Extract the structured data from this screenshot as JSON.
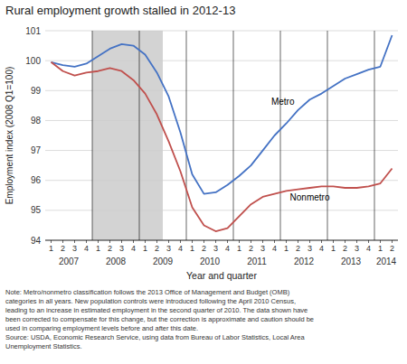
{
  "chart_data": {
    "type": "line",
    "title": "Rural employment growth stalled in 2012-13",
    "ylabel": "Employment index (2008 Q1=100)",
    "xlabel": "Year and quarter",
    "note": "Note: Metro/nonmetro classification follows the 2013 Office of Management and Budget (OMB)\ncategories in all years. New population controls were introduced following the April 2010 Census,\nleading to an increase in estimated employment in the second quarter of 2010. The data shown have\nbeen corrected to compensate for this change, but the correction is approximate and caution should be\nused in comparing employment levels before and after this date.\nSource: USDA, Economic Research Service, using data from Bureau of Labor Statistics, Local Area\nUnemployment Statistics.",
    "categories": [
      1,
      2,
      3,
      4,
      1,
      2,
      3,
      4,
      1,
      2,
      3,
      4,
      1,
      2,
      3,
      4,
      1,
      2,
      3,
      4,
      1,
      2,
      3,
      4,
      1,
      2,
      3,
      4,
      1,
      2
    ],
    "category_groups": [
      "2007",
      "2007",
      "2007",
      "2007",
      "2008",
      "2008",
      "2008",
      "2008",
      "2009",
      "2009",
      "2009",
      "2009",
      "2010",
      "2010",
      "2010",
      "2010",
      "2011",
      "2011",
      "2011",
      "2011",
      "2012",
      "2012",
      "2012",
      "2012",
      "2013",
      "2013",
      "2013",
      "2013",
      "2014",
      "2014"
    ],
    "shaded": {
      "start": 4,
      "end": 9,
      "color": "#d3d3d3"
    },
    "series": [
      {
        "name": "Metro",
        "color": "#4472C4",
        "values": [
          99.95,
          99.85,
          99.8,
          99.9,
          100.15,
          100.4,
          100.55,
          100.5,
          100.2,
          99.6,
          98.8,
          97.6,
          96.2,
          95.55,
          95.6,
          95.85,
          96.15,
          96.5,
          97.0,
          97.5,
          97.9,
          98.35,
          98.7,
          98.9,
          99.15,
          99.4,
          99.55,
          99.7,
          99.8,
          100.85
        ]
      },
      {
        "name": "Nonmetro",
        "color": "#C0504D",
        "values": [
          99.95,
          99.65,
          99.5,
          99.6,
          99.65,
          99.75,
          99.65,
          99.35,
          98.9,
          98.2,
          97.3,
          96.3,
          95.1,
          94.5,
          94.3,
          94.4,
          94.8,
          95.2,
          95.45,
          95.55,
          95.65,
          95.7,
          95.75,
          95.8,
          95.8,
          95.75,
          95.75,
          95.8,
          95.9,
          96.4
        ]
      }
    ],
    "ylim": [
      94,
      101
    ],
    "yticks": [
      94,
      95,
      96,
      97,
      98,
      99,
      100,
      101
    ],
    "grid": true
  }
}
